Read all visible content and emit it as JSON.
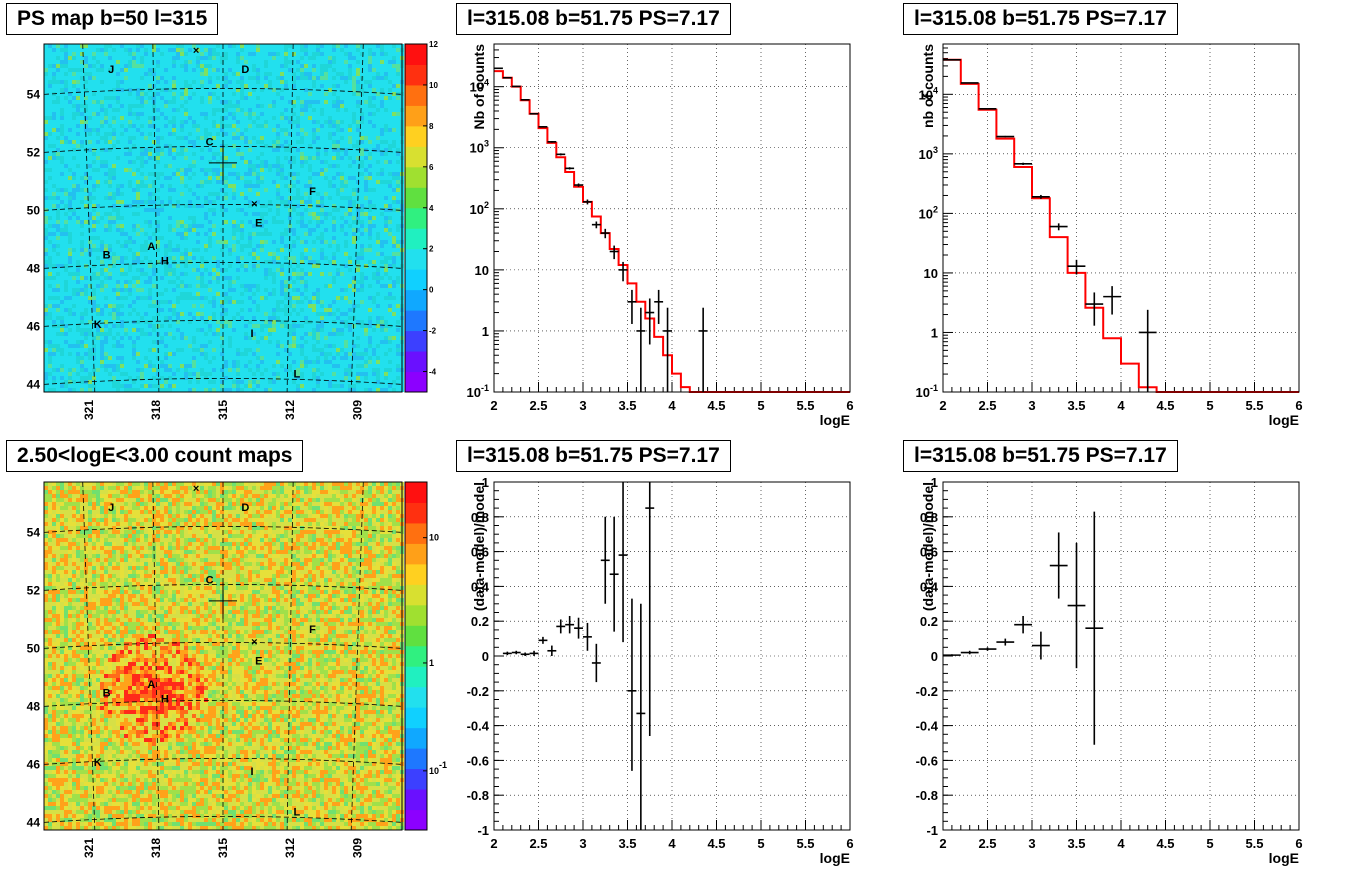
{
  "panels": {
    "map_ps": {
      "title": "PS map b=50 l=315"
    },
    "map_counts": {
      "title": "2.50<logE<3.00 count maps"
    },
    "spec_a": {
      "title": "l=315.08 b=51.75 PS=7.17"
    },
    "spec_b": {
      "title": "l=315.08 b=51.75 PS=7.17"
    },
    "res_a": {
      "title": "l=315.08 b=51.75 PS=7.17"
    },
    "res_b": {
      "title": "l=315.08 b=51.75 PS=7.17"
    }
  },
  "chart_data": [
    {
      "id": "map_ps",
      "type": "heatmap",
      "title": "PS map b=50 l=315",
      "x_ticks": [
        "321",
        "318",
        "315",
        "312",
        "309"
      ],
      "y_ticks": [
        "44",
        "46",
        "48",
        "50",
        "52",
        "54"
      ],
      "xlim": [
        323,
        307
      ],
      "ylim": [
        43.6,
        55.6
      ],
      "colorbar": {
        "scale": "linear",
        "range": [
          -5,
          12
        ],
        "ticks": [
          "12",
          "10",
          "8",
          "6",
          "4",
          "2",
          "0",
          "-2",
          "-4"
        ]
      },
      "dominant_color": "#22e0ee",
      "labels": [
        {
          "text": "J",
          "l": 320.0,
          "b": 54.6
        },
        {
          "text": "D",
          "l": 314.0,
          "b": 54.6
        },
        {
          "text": "C",
          "l": 315.6,
          "b": 52.1
        },
        {
          "text": "F",
          "l": 311.0,
          "b": 50.4
        },
        {
          "text": "E",
          "l": 313.4,
          "b": 49.3
        },
        {
          "text": "A",
          "l": 318.2,
          "b": 48.5
        },
        {
          "text": "B",
          "l": 320.2,
          "b": 48.2
        },
        {
          "text": "H",
          "l": 317.6,
          "b": 48.0
        },
        {
          "text": "K",
          "l": 320.6,
          "b": 45.8
        },
        {
          "text": "I",
          "l": 313.7,
          "b": 45.5
        },
        {
          "text": "L",
          "l": 311.7,
          "b": 44.1
        }
      ],
      "markers": [
        {
          "l": 316.2,
          "b": 55.4
        },
        {
          "l": 313.6,
          "b": 50.1
        }
      ],
      "source_cross": {
        "l": 315.0,
        "b": 51.5
      }
    },
    {
      "id": "map_counts",
      "type": "heatmap",
      "title": "2.50<logE<3.00 count maps",
      "x_ticks": [
        "321",
        "318",
        "315",
        "312",
        "309"
      ],
      "y_ticks": [
        "44",
        "46",
        "48",
        "50",
        "52",
        "54"
      ],
      "xlim": [
        323,
        307
      ],
      "ylim": [
        43.6,
        55.6
      ],
      "colorbar": {
        "scale": "log",
        "ticks": [
          "10",
          "1",
          "10^-1"
        ]
      },
      "dominant_color": "#d9e040",
      "hotspot": {
        "l": 318.2,
        "b": 48.5
      },
      "labels": [
        {
          "text": "J",
          "l": 320.0,
          "b": 54.6
        },
        {
          "text": "D",
          "l": 314.0,
          "b": 54.6
        },
        {
          "text": "C",
          "l": 315.6,
          "b": 52.1
        },
        {
          "text": "F",
          "l": 311.0,
          "b": 50.4
        },
        {
          "text": "E",
          "l": 313.4,
          "b": 49.3
        },
        {
          "text": "A",
          "l": 318.2,
          "b": 48.5
        },
        {
          "text": "B",
          "l": 320.2,
          "b": 48.2
        },
        {
          "text": "H",
          "l": 317.6,
          "b": 48.0
        },
        {
          "text": "K",
          "l": 320.6,
          "b": 45.8
        },
        {
          "text": "I",
          "l": 313.7,
          "b": 45.5
        },
        {
          "text": "L",
          "l": 311.7,
          "b": 44.1
        }
      ],
      "markers": [
        {
          "l": 316.2,
          "b": 55.4
        },
        {
          "l": 313.6,
          "b": 50.1
        }
      ],
      "source_cross": {
        "l": 315.0,
        "b": 51.5
      }
    },
    {
      "id": "spec_a",
      "type": "line",
      "title": "l=315.08 b=51.75 PS=7.17",
      "xlabel": "logE",
      "ylabel": "Nb of counts",
      "xlim": [
        2,
        6
      ],
      "ylim": [
        0.1,
        50000
      ],
      "yscale": "log",
      "x_ticks": [
        "2",
        "2.5",
        "3",
        "3.5",
        "4",
        "4.5",
        "5",
        "5.5",
        "6"
      ],
      "y_ticks": [
        {
          "v": 0.1,
          "t": "10^-1"
        },
        {
          "v": 1,
          "t": "1"
        },
        {
          "v": 10,
          "t": "10"
        },
        {
          "v": 100,
          "t": "10^2"
        },
        {
          "v": 1000,
          "t": "10^3"
        },
        {
          "v": 10000,
          "t": "10^4"
        }
      ],
      "grid": true,
      "model": {
        "edges": [
          2.0,
          2.1,
          2.2,
          2.3,
          2.4,
          2.5,
          2.6,
          2.7,
          2.8,
          2.9,
          3.0,
          3.1,
          3.2,
          3.3,
          3.4,
          3.5,
          3.6,
          3.7,
          3.8,
          3.9,
          4.0,
          4.1,
          4.2,
          6.0
        ],
        "values": [
          18000,
          14000,
          10000,
          6000,
          3600,
          2100,
          1200,
          700,
          400,
          230,
          130,
          75,
          40,
          22,
          12,
          6,
          3,
          1.6,
          0.8,
          0.4,
          0.2,
          0.12,
          0.1
        ]
      },
      "data_points": [
        {
          "x": 2.05,
          "y": 20000,
          "xe": 0.05,
          "ylo": 19500,
          "yhi": 20500
        },
        {
          "x": 2.15,
          "y": 14000,
          "xe": 0.05,
          "ylo": 13700,
          "yhi": 14300
        },
        {
          "x": 2.25,
          "y": 10100,
          "xe": 0.05,
          "ylo": 9900,
          "yhi": 10300
        },
        {
          "x": 2.35,
          "y": 6100,
          "xe": 0.05,
          "ylo": 6000,
          "yhi": 6200
        },
        {
          "x": 2.45,
          "y": 3600,
          "xe": 0.05,
          "ylo": 3540,
          "yhi": 3660
        },
        {
          "x": 2.55,
          "y": 2200,
          "xe": 0.05,
          "ylo": 2150,
          "yhi": 2250
        },
        {
          "x": 2.65,
          "y": 1250,
          "xe": 0.05,
          "ylo": 1210,
          "yhi": 1290
        },
        {
          "x": 2.75,
          "y": 780,
          "xe": 0.05,
          "ylo": 750,
          "yhi": 810
        },
        {
          "x": 2.85,
          "y": 460,
          "xe": 0.05,
          "ylo": 440,
          "yhi": 480
        },
        {
          "x": 2.95,
          "y": 245,
          "xe": 0.05,
          "ylo": 230,
          "yhi": 260
        },
        {
          "x": 3.05,
          "y": 130,
          "xe": 0.05,
          "ylo": 118,
          "yhi": 142
        },
        {
          "x": 3.15,
          "y": 55,
          "xe": 0.05,
          "ylo": 48,
          "yhi": 62
        },
        {
          "x": 3.25,
          "y": 40,
          "xe": 0.05,
          "ylo": 33,
          "yhi": 47
        },
        {
          "x": 3.35,
          "y": 20,
          "xe": 0.05,
          "ylo": 15,
          "yhi": 25
        },
        {
          "x": 3.45,
          "y": 10,
          "xe": 0.05,
          "ylo": 6.5,
          "yhi": 13.5
        },
        {
          "x": 3.55,
          "y": 3,
          "xe": 0.05,
          "ylo": 1.3,
          "yhi": 4.7
        },
        {
          "x": 3.65,
          "y": 1,
          "xe": 0.05,
          "ylo": 0.1,
          "yhi": 2.4
        },
        {
          "x": 3.75,
          "y": 2,
          "xe": 0.05,
          "ylo": 0.6,
          "yhi": 3.4
        },
        {
          "x": 3.85,
          "y": 3,
          "xe": 0.05,
          "ylo": 1.3,
          "yhi": 4.7
        },
        {
          "x": 3.95,
          "y": 1,
          "xe": 0.05,
          "ylo": 0.1,
          "yhi": 2.4
        },
        {
          "x": 4.35,
          "y": 1,
          "xe": 0.05,
          "ylo": 0.1,
          "yhi": 2.4
        }
      ]
    },
    {
      "id": "spec_b",
      "type": "line",
      "title": "l=315.08 b=51.75 PS=7.17",
      "xlabel": "logE",
      "ylabel": "nb of counts",
      "xlim": [
        2,
        6
      ],
      "ylim": [
        0.1,
        70000
      ],
      "yscale": "log",
      "x_ticks": [
        "2",
        "2.5",
        "3",
        "3.5",
        "4",
        "4.5",
        "5",
        "5.5",
        "6"
      ],
      "y_ticks": [
        {
          "v": 0.1,
          "t": "10^-1"
        },
        {
          "v": 1,
          "t": "1"
        },
        {
          "v": 10,
          "t": "10"
        },
        {
          "v": 100,
          "t": "10^2"
        },
        {
          "v": 1000,
          "t": "10^3"
        },
        {
          "v": 10000,
          "t": "10^4"
        }
      ],
      "grid": true,
      "model": {
        "edges": [
          2.0,
          2.2,
          2.4,
          2.6,
          2.8,
          3.0,
          3.2,
          3.4,
          3.6,
          3.8,
          4.0,
          4.2,
          4.4,
          6.0
        ],
        "values": [
          38000,
          15000,
          5500,
          1800,
          600,
          180,
          40,
          10,
          2.6,
          0.8,
          0.3,
          0.12,
          0.1
        ]
      },
      "data_points": [
        {
          "x": 2.1,
          "y": 38000,
          "xe": 0.1,
          "ylo": 37600,
          "yhi": 38400
        },
        {
          "x": 2.3,
          "y": 15500,
          "xe": 0.1,
          "ylo": 15300,
          "yhi": 15700
        },
        {
          "x": 2.5,
          "y": 5700,
          "xe": 0.1,
          "ylo": 5600,
          "yhi": 5800
        },
        {
          "x": 2.7,
          "y": 1950,
          "xe": 0.1,
          "ylo": 1900,
          "yhi": 2000
        },
        {
          "x": 2.9,
          "y": 680,
          "xe": 0.1,
          "ylo": 650,
          "yhi": 710
        },
        {
          "x": 3.1,
          "y": 190,
          "xe": 0.1,
          "ylo": 176,
          "yhi": 204
        },
        {
          "x": 3.3,
          "y": 60,
          "xe": 0.1,
          "ylo": 52,
          "yhi": 68
        },
        {
          "x": 3.5,
          "y": 13,
          "xe": 0.1,
          "ylo": 9.4,
          "yhi": 16.6
        },
        {
          "x": 3.7,
          "y": 3,
          "xe": 0.1,
          "ylo": 1.3,
          "yhi": 4.7
        },
        {
          "x": 3.9,
          "y": 4,
          "xe": 0.1,
          "ylo": 2,
          "yhi": 6
        },
        {
          "x": 4.3,
          "y": 1,
          "xe": 0.1,
          "ylo": 0.1,
          "yhi": 2.4
        }
      ]
    },
    {
      "id": "res_a",
      "type": "scatter",
      "title": "l=315.08 b=51.75 PS=7.17",
      "xlabel": "logE",
      "ylabel": "(data-model)/model",
      "xlim": [
        2,
        6
      ],
      "ylim": [
        -1,
        1
      ],
      "x_ticks": [
        "2",
        "2.5",
        "3",
        "3.5",
        "4",
        "4.5",
        "5",
        "5.5",
        "6"
      ],
      "y_ticks": [
        "-1",
        "-0.8",
        "-0.6",
        "-0.4",
        "-0.2",
        "0",
        "0.2",
        "0.4",
        "0.6",
        "0.8",
        "1"
      ],
      "grid": true,
      "data_points": [
        {
          "x": 2.15,
          "y": 0.015,
          "xe": 0.05,
          "ylo": 0.005,
          "yhi": 0.025
        },
        {
          "x": 2.25,
          "y": 0.02,
          "xe": 0.05,
          "ylo": 0.01,
          "yhi": 0.03
        },
        {
          "x": 2.35,
          "y": 0.01,
          "xe": 0.05,
          "ylo": 0.0,
          "yhi": 0.02
        },
        {
          "x": 2.45,
          "y": 0.015,
          "xe": 0.05,
          "ylo": 0.0,
          "yhi": 0.03
        },
        {
          "x": 2.55,
          "y": 0.09,
          "xe": 0.05,
          "ylo": 0.07,
          "yhi": 0.11
        },
        {
          "x": 2.65,
          "y": 0.03,
          "xe": 0.05,
          "ylo": 0.0,
          "yhi": 0.06
        },
        {
          "x": 2.75,
          "y": 0.17,
          "xe": 0.05,
          "ylo": 0.13,
          "yhi": 0.21
        },
        {
          "x": 2.85,
          "y": 0.18,
          "xe": 0.05,
          "ylo": 0.13,
          "yhi": 0.23
        },
        {
          "x": 2.95,
          "y": 0.16,
          "xe": 0.05,
          "ylo": 0.1,
          "yhi": 0.22
        },
        {
          "x": 3.05,
          "y": 0.11,
          "xe": 0.05,
          "ylo": 0.03,
          "yhi": 0.19
        },
        {
          "x": 3.15,
          "y": -0.04,
          "xe": 0.05,
          "ylo": -0.15,
          "yhi": 0.07
        },
        {
          "x": 3.25,
          "y": 0.55,
          "xe": 0.05,
          "ylo": 0.3,
          "yhi": 0.8
        },
        {
          "x": 3.35,
          "y": 0.47,
          "xe": 0.05,
          "ylo": 0.14,
          "yhi": 0.8
        },
        {
          "x": 3.45,
          "y": 0.58,
          "xe": 0.05,
          "ylo": 0.08,
          "yhi": 1.0
        },
        {
          "x": 3.55,
          "y": -0.2,
          "xe": 0.05,
          "ylo": -0.66,
          "yhi": 0.33
        },
        {
          "x": 3.65,
          "y": -0.33,
          "xe": 0.05,
          "ylo": -1.0,
          "yhi": 0.3
        },
        {
          "x": 3.75,
          "y": 0.85,
          "xe": 0.05,
          "ylo": -0.46,
          "yhi": 1.0
        }
      ]
    },
    {
      "id": "res_b",
      "type": "scatter",
      "title": "l=315.08 b=51.75 PS=7.17",
      "xlabel": "logE",
      "ylabel": "(data-model)/model",
      "xlim": [
        2,
        6
      ],
      "ylim": [
        -1,
        1
      ],
      "x_ticks": [
        "2",
        "2.5",
        "3",
        "3.5",
        "4",
        "4.5",
        "5",
        "5.5",
        "6"
      ],
      "y_ticks": [
        "-1",
        "-0.8",
        "-0.6",
        "-0.4",
        "-0.2",
        "0",
        "0.2",
        "0.4",
        "0.6",
        "0.8",
        "1"
      ],
      "grid": true,
      "data_points": [
        {
          "x": 2.1,
          "y": 0.005,
          "xe": 0.1,
          "ylo": 0.0,
          "yhi": 0.01
        },
        {
          "x": 2.3,
          "y": 0.02,
          "xe": 0.1,
          "ylo": 0.01,
          "yhi": 0.03
        },
        {
          "x": 2.5,
          "y": 0.04,
          "xe": 0.1,
          "ylo": 0.03,
          "yhi": 0.05
        },
        {
          "x": 2.7,
          "y": 0.08,
          "xe": 0.1,
          "ylo": 0.06,
          "yhi": 0.1
        },
        {
          "x": 2.9,
          "y": 0.18,
          "xe": 0.1,
          "ylo": 0.13,
          "yhi": 0.23
        },
        {
          "x": 3.1,
          "y": 0.06,
          "xe": 0.1,
          "ylo": -0.02,
          "yhi": 0.14
        },
        {
          "x": 3.3,
          "y": 0.52,
          "xe": 0.1,
          "ylo": 0.33,
          "yhi": 0.71
        },
        {
          "x": 3.5,
          "y": 0.29,
          "xe": 0.1,
          "ylo": -0.07,
          "yhi": 0.65
        },
        {
          "x": 3.7,
          "y": 0.16,
          "xe": 0.1,
          "ylo": -0.51,
          "yhi": 0.83
        }
      ]
    }
  ]
}
